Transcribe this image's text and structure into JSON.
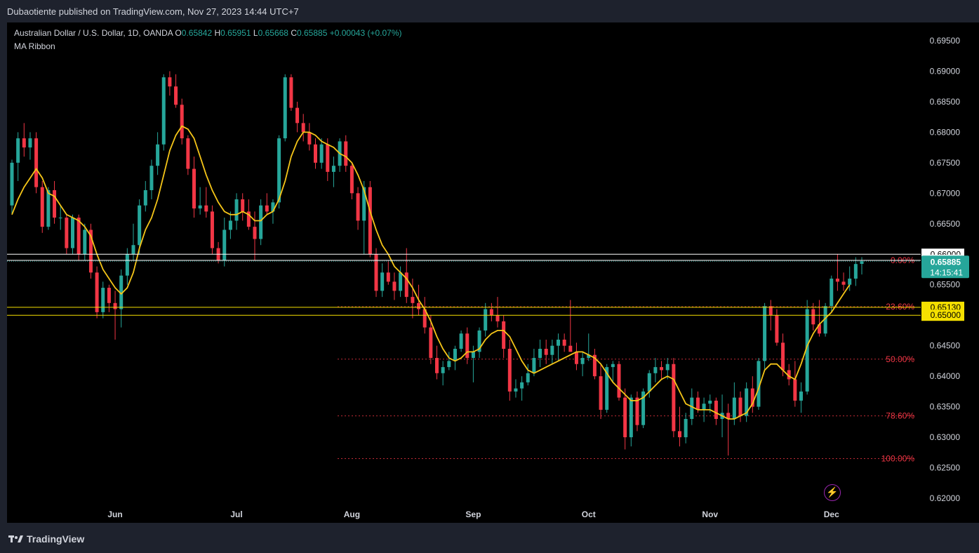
{
  "header": {
    "publisher": "Dubaotiente published on TradingView.com, Nov 27, 2023 14:44 UTC+7"
  },
  "legend": {
    "symbol": "Australian Dollar / U.S. Dollar, 1D, OANDA",
    "o_label": "O",
    "o_value": "0.65842",
    "h_label": "H",
    "h_value": "0.65951",
    "l_label": "L",
    "l_value": "0.65668",
    "c_label": "C",
    "c_value": "0.65885",
    "change": "+0.00043 (+0.07%)",
    "indicator": "MA Ribbon"
  },
  "footer": {
    "brand": "TradingView"
  },
  "colors": {
    "up": "#26a69a",
    "down": "#f23645",
    "ma": "#f5c518",
    "fib": "#f23645",
    "hline_white": "#ffffff",
    "hline_yellow": "#f5e000"
  },
  "chart_data": {
    "type": "candlestick",
    "symbol": "AUDUSD",
    "timeframe": "1D",
    "ylim": [
      0.6175,
      0.6975
    ],
    "y_ticks": [
      "0.69500",
      "0.69000",
      "0.68500",
      "0.68000",
      "0.67500",
      "0.67000",
      "0.66500",
      "0.66000",
      "0.65500",
      "0.64500",
      "0.64000",
      "0.63500",
      "0.63000",
      "0.62500",
      "0.62000"
    ],
    "x_ticks": [
      {
        "label": "Jun",
        "index": 17
      },
      {
        "label": "Jul",
        "index": 37
      },
      {
        "label": "Aug",
        "index": 56
      },
      {
        "label": "Sep",
        "index": 76
      },
      {
        "label": "Oct",
        "index": 95
      },
      {
        "label": "Nov",
        "index": 115
      },
      {
        "label": "Dec",
        "index": 135
      }
    ],
    "candles": [
      [
        0.668,
        0.6755,
        0.6665,
        0.675
      ],
      [
        0.675,
        0.68,
        0.672,
        0.679
      ],
      [
        0.679,
        0.6815,
        0.676,
        0.6775
      ],
      [
        0.6775,
        0.68,
        0.6755,
        0.679
      ],
      [
        0.679,
        0.68,
        0.67,
        0.671
      ],
      [
        0.671,
        0.672,
        0.6635,
        0.6645
      ],
      [
        0.6645,
        0.671,
        0.664,
        0.6705
      ],
      [
        0.6705,
        0.672,
        0.665,
        0.666
      ],
      [
        0.666,
        0.668,
        0.664,
        0.666
      ],
      [
        0.666,
        0.6665,
        0.66,
        0.661
      ],
      [
        0.661,
        0.6665,
        0.66,
        0.666
      ],
      [
        0.666,
        0.6665,
        0.659,
        0.66
      ],
      [
        0.66,
        0.665,
        0.659,
        0.664
      ],
      [
        0.664,
        0.665,
        0.656,
        0.657
      ],
      [
        0.657,
        0.658,
        0.6495,
        0.6505
      ],
      [
        0.6505,
        0.6555,
        0.6495,
        0.6545
      ],
      [
        0.6545,
        0.655,
        0.6505,
        0.652
      ],
      [
        0.652,
        0.654,
        0.646,
        0.651
      ],
      [
        0.651,
        0.6575,
        0.648,
        0.6565
      ],
      [
        0.6565,
        0.661,
        0.655,
        0.66
      ],
      [
        0.66,
        0.665,
        0.659,
        0.6615
      ],
      [
        0.6615,
        0.669,
        0.66,
        0.668
      ],
      [
        0.668,
        0.672,
        0.667,
        0.6705
      ],
      [
        0.6705,
        0.6755,
        0.669,
        0.6745
      ],
      [
        0.6745,
        0.68,
        0.673,
        0.678
      ],
      [
        0.678,
        0.6895,
        0.677,
        0.689
      ],
      [
        0.689,
        0.69,
        0.686,
        0.6875
      ],
      [
        0.6875,
        0.6895,
        0.684,
        0.6845
      ],
      [
        0.6845,
        0.6855,
        0.678,
        0.679
      ],
      [
        0.679,
        0.6795,
        0.673,
        0.674
      ],
      [
        0.674,
        0.676,
        0.666,
        0.6675
      ],
      [
        0.6675,
        0.671,
        0.6665,
        0.668
      ],
      [
        0.668,
        0.671,
        0.666,
        0.667
      ],
      [
        0.667,
        0.668,
        0.66,
        0.661
      ],
      [
        0.661,
        0.662,
        0.6585,
        0.659
      ],
      [
        0.659,
        0.666,
        0.658,
        0.664
      ],
      [
        0.664,
        0.667,
        0.6625,
        0.6655
      ],
      [
        0.6655,
        0.67,
        0.664,
        0.669
      ],
      [
        0.669,
        0.67,
        0.6655,
        0.667
      ],
      [
        0.667,
        0.669,
        0.664,
        0.6645
      ],
      [
        0.6645,
        0.667,
        0.659,
        0.6625
      ],
      [
        0.6625,
        0.669,
        0.6615,
        0.668
      ],
      [
        0.668,
        0.67,
        0.6665,
        0.667
      ],
      [
        0.667,
        0.669,
        0.665,
        0.6685
      ],
      [
        0.6685,
        0.6795,
        0.6675,
        0.679
      ],
      [
        0.679,
        0.6895,
        0.6785,
        0.689
      ],
      [
        0.689,
        0.6895,
        0.6835,
        0.684
      ],
      [
        0.684,
        0.685,
        0.68,
        0.6815
      ],
      [
        0.6815,
        0.683,
        0.6785,
        0.68
      ],
      [
        0.68,
        0.6815,
        0.677,
        0.678
      ],
      [
        0.678,
        0.679,
        0.674,
        0.675
      ],
      [
        0.675,
        0.679,
        0.674,
        0.678
      ],
      [
        0.678,
        0.679,
        0.672,
        0.6735
      ],
      [
        0.6735,
        0.676,
        0.671,
        0.6745
      ],
      [
        0.6745,
        0.679,
        0.6735,
        0.6785
      ],
      [
        0.6785,
        0.6795,
        0.6735,
        0.6745
      ],
      [
        0.6745,
        0.675,
        0.669,
        0.67
      ],
      [
        0.67,
        0.671,
        0.664,
        0.6655
      ],
      [
        0.6655,
        0.672,
        0.66,
        0.671
      ],
      [
        0.671,
        0.672,
        0.6595,
        0.66
      ],
      [
        0.66,
        0.661,
        0.653,
        0.654
      ],
      [
        0.654,
        0.6585,
        0.653,
        0.657
      ],
      [
        0.657,
        0.659,
        0.655,
        0.6555
      ],
      [
        0.6555,
        0.657,
        0.6525,
        0.654
      ],
      [
        0.654,
        0.658,
        0.653,
        0.657
      ],
      [
        0.657,
        0.661,
        0.652,
        0.653
      ],
      [
        0.653,
        0.656,
        0.6495,
        0.652
      ],
      [
        0.652,
        0.655,
        0.65,
        0.651
      ],
      [
        0.651,
        0.653,
        0.647,
        0.648
      ],
      [
        0.648,
        0.65,
        0.642,
        0.643
      ],
      [
        0.643,
        0.645,
        0.6395,
        0.6405
      ],
      [
        0.6405,
        0.6425,
        0.6385,
        0.6415
      ],
      [
        0.6415,
        0.644,
        0.641,
        0.6425
      ],
      [
        0.6425,
        0.645,
        0.641,
        0.6445
      ],
      [
        0.6445,
        0.6475,
        0.644,
        0.647
      ],
      [
        0.647,
        0.648,
        0.642,
        0.643
      ],
      [
        0.643,
        0.645,
        0.639,
        0.644
      ],
      [
        0.644,
        0.648,
        0.643,
        0.6475
      ],
      [
        0.6475,
        0.652,
        0.6465,
        0.651
      ],
      [
        0.651,
        0.652,
        0.649,
        0.65
      ],
      [
        0.65,
        0.653,
        0.648,
        0.649
      ],
      [
        0.649,
        0.65,
        0.643,
        0.6445
      ],
      [
        0.6445,
        0.646,
        0.636,
        0.6375
      ],
      [
        0.6375,
        0.6395,
        0.6365,
        0.638
      ],
      [
        0.638,
        0.64,
        0.636,
        0.639
      ],
      [
        0.639,
        0.642,
        0.6385,
        0.6405
      ],
      [
        0.6405,
        0.6445,
        0.64,
        0.643
      ],
      [
        0.643,
        0.646,
        0.6415,
        0.6445
      ],
      [
        0.6445,
        0.646,
        0.642,
        0.6435
      ],
      [
        0.6435,
        0.646,
        0.642,
        0.645
      ],
      [
        0.645,
        0.647,
        0.6425,
        0.646
      ],
      [
        0.646,
        0.647,
        0.644,
        0.645
      ],
      [
        0.645,
        0.6525,
        0.644,
        0.644
      ],
      [
        0.644,
        0.6455,
        0.641,
        0.642
      ],
      [
        0.642,
        0.644,
        0.64,
        0.643
      ],
      [
        0.643,
        0.647,
        0.6425,
        0.6435
      ],
      [
        0.6435,
        0.6445,
        0.6395,
        0.64
      ],
      [
        0.64,
        0.642,
        0.633,
        0.6345
      ],
      [
        0.6345,
        0.642,
        0.634,
        0.6415
      ],
      [
        0.6415,
        0.6425,
        0.639,
        0.642
      ],
      [
        0.642,
        0.6425,
        0.636,
        0.6365
      ],
      [
        0.6365,
        0.638,
        0.628,
        0.63
      ],
      [
        0.63,
        0.637,
        0.6285,
        0.6365
      ],
      [
        0.6365,
        0.6375,
        0.631,
        0.632
      ],
      [
        0.632,
        0.638,
        0.6315,
        0.6375
      ],
      [
        0.6375,
        0.641,
        0.6365,
        0.6405
      ],
      [
        0.6405,
        0.643,
        0.639,
        0.6415
      ],
      [
        0.6415,
        0.6425,
        0.6395,
        0.641
      ],
      [
        0.641,
        0.643,
        0.6395,
        0.642
      ],
      [
        0.642,
        0.643,
        0.63,
        0.631
      ],
      [
        0.631,
        0.635,
        0.6285,
        0.63
      ],
      [
        0.63,
        0.634,
        0.629,
        0.633
      ],
      [
        0.633,
        0.638,
        0.632,
        0.6365
      ],
      [
        0.6365,
        0.6375,
        0.634,
        0.6345
      ],
      [
        0.6345,
        0.6365,
        0.6325,
        0.6355
      ],
      [
        0.6355,
        0.637,
        0.634,
        0.636
      ],
      [
        0.636,
        0.6365,
        0.632,
        0.633
      ],
      [
        0.633,
        0.637,
        0.63,
        0.634
      ],
      [
        0.634,
        0.6355,
        0.627,
        0.633
      ],
      [
        0.633,
        0.639,
        0.632,
        0.6365
      ],
      [
        0.6365,
        0.6375,
        0.6325,
        0.6335
      ],
      [
        0.6335,
        0.639,
        0.6325,
        0.638
      ],
      [
        0.638,
        0.64,
        0.634,
        0.635
      ],
      [
        0.635,
        0.643,
        0.6345,
        0.6425
      ],
      [
        0.6425,
        0.652,
        0.641,
        0.6515
      ],
      [
        0.6515,
        0.6525,
        0.6475,
        0.65
      ],
      [
        0.65,
        0.651,
        0.645,
        0.6455
      ],
      [
        0.6455,
        0.647,
        0.64,
        0.641
      ],
      [
        0.641,
        0.642,
        0.6385,
        0.6395
      ],
      [
        0.6395,
        0.6425,
        0.635,
        0.636
      ],
      [
        0.636,
        0.639,
        0.634,
        0.6375
      ],
      [
        0.6375,
        0.6525,
        0.637,
        0.651
      ],
      [
        0.651,
        0.652,
        0.6475,
        0.6485
      ],
      [
        0.6485,
        0.6525,
        0.6465,
        0.647
      ],
      [
        0.647,
        0.652,
        0.6465,
        0.6515
      ],
      [
        0.6515,
        0.6565,
        0.6505,
        0.656
      ],
      [
        0.656,
        0.66,
        0.654,
        0.6555
      ],
      [
        0.6555,
        0.657,
        0.654,
        0.655
      ],
      [
        0.655,
        0.658,
        0.654,
        0.656
      ],
      [
        0.656,
        0.6595,
        0.6548,
        0.6584
      ],
      [
        0.65842,
        0.65951,
        0.65668,
        0.65885
      ]
    ],
    "ma_ribbon": [
      0.6665,
      0.669,
      0.671,
      0.6725,
      0.674,
      0.6725,
      0.67,
      0.6695,
      0.668,
      0.6665,
      0.666,
      0.6655,
      0.6645,
      0.663,
      0.66,
      0.6575,
      0.656,
      0.6545,
      0.6535,
      0.6545,
      0.657,
      0.661,
      0.664,
      0.666,
      0.669,
      0.673,
      0.677,
      0.6795,
      0.681,
      0.6805,
      0.679,
      0.676,
      0.673,
      0.6705,
      0.6685,
      0.667,
      0.6665,
      0.6665,
      0.667,
      0.6665,
      0.6655,
      0.6655,
      0.6665,
      0.667,
      0.669,
      0.672,
      0.676,
      0.6785,
      0.68,
      0.68,
      0.6795,
      0.6785,
      0.678,
      0.6775,
      0.6765,
      0.676,
      0.675,
      0.673,
      0.6705,
      0.667,
      0.664,
      0.6615,
      0.66,
      0.658,
      0.657,
      0.656,
      0.6545,
      0.6525,
      0.651,
      0.649,
      0.6465,
      0.6445,
      0.643,
      0.6425,
      0.643,
      0.644,
      0.644,
      0.6445,
      0.646,
      0.647,
      0.6475,
      0.6475,
      0.6465,
      0.6445,
      0.6425,
      0.641,
      0.6405,
      0.641,
      0.6415,
      0.642,
      0.6425,
      0.643,
      0.6435,
      0.644,
      0.644,
      0.6435,
      0.643,
      0.642,
      0.6405,
      0.639,
      0.638,
      0.637,
      0.636,
      0.636,
      0.6365,
      0.6375,
      0.6385,
      0.6395,
      0.64,
      0.6395,
      0.6375,
      0.6355,
      0.635,
      0.6345,
      0.6345,
      0.6345,
      0.634,
      0.6335,
      0.633,
      0.633,
      0.6335,
      0.634,
      0.6355,
      0.638,
      0.641,
      0.642,
      0.642,
      0.641,
      0.64,
      0.6395,
      0.642,
      0.645,
      0.647,
      0.6485,
      0.6495,
      0.6505,
      0.652,
      0.6535,
      0.655
    ],
    "fib_levels": [
      {
        "label": "0.00%",
        "price": 0.659
      },
      {
        "label": "23.60%",
        "price": 0.6514
      },
      {
        "label": "50.00%",
        "price": 0.6428
      },
      {
        "label": "78.60%",
        "price": 0.6335
      },
      {
        "label": "100.00%",
        "price": 0.6265
      }
    ],
    "hlines": [
      {
        "price": 0.66,
        "color": "white",
        "label": "0.66000"
      },
      {
        "price": 0.659,
        "color": "white",
        "label": "0.65900"
      },
      {
        "price": 0.6513,
        "color": "yellow",
        "label": "0.65130"
      },
      {
        "price": 0.65,
        "color": "yellow",
        "label": "0.65000"
      }
    ],
    "last_price": {
      "price": 0.65885,
      "label": "0.65885",
      "countdown": "14:15:41"
    }
  }
}
